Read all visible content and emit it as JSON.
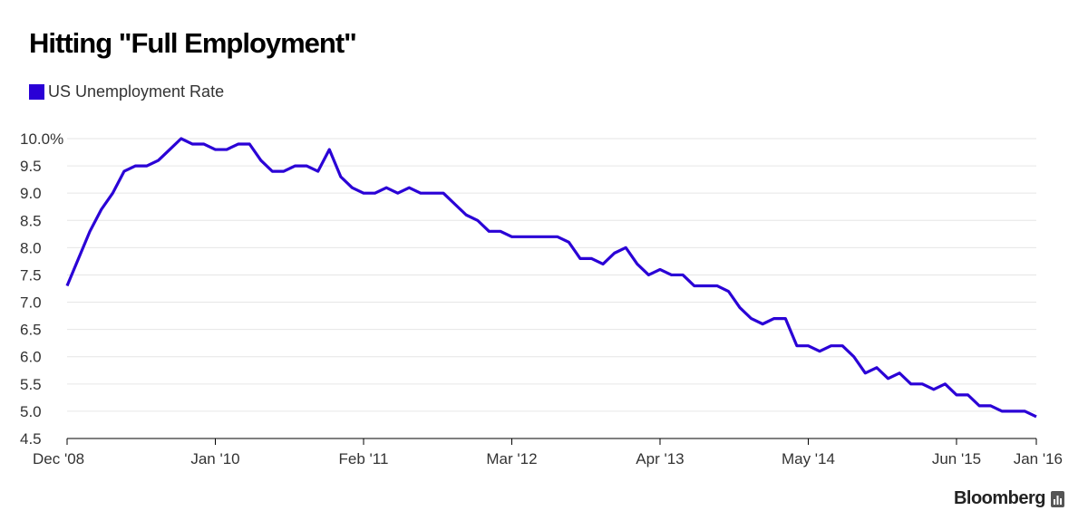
{
  "title": "Hitting \"Full Employment\"",
  "brand": "Bloomberg",
  "colors": {
    "series": "#2a00d6",
    "grid": "#e6e6e6",
    "axis": "#000000",
    "text": "#333333"
  },
  "chart_data": {
    "type": "line",
    "title": "Hitting \"Full Employment\"",
    "xlabel": "",
    "ylabel": "",
    "ylim": [
      4.5,
      10.0
    ],
    "y_ticks": [
      {
        "value": 10.0,
        "label": "10.0%"
      },
      {
        "value": 9.5,
        "label": "9.5"
      },
      {
        "value": 9.0,
        "label": "9.0"
      },
      {
        "value": 8.5,
        "label": "8.5"
      },
      {
        "value": 8.0,
        "label": "8.0"
      },
      {
        "value": 7.5,
        "label": "7.5"
      },
      {
        "value": 7.0,
        "label": "7.0"
      },
      {
        "value": 6.5,
        "label": "6.5"
      },
      {
        "value": 6.0,
        "label": "6.0"
      },
      {
        "value": 5.5,
        "label": "5.5"
      },
      {
        "value": 5.0,
        "label": "5.0"
      },
      {
        "value": 4.5,
        "label": "4.5"
      }
    ],
    "x_ticks": [
      {
        "date": "2008-12",
        "label": "Dec '08"
      },
      {
        "date": "2010-01",
        "label": "Jan '10"
      },
      {
        "date": "2011-02",
        "label": "Feb '11"
      },
      {
        "date": "2012-03",
        "label": "Mar '12"
      },
      {
        "date": "2013-04",
        "label": "Apr '13"
      },
      {
        "date": "2014-05",
        "label": "May '14"
      },
      {
        "date": "2015-06",
        "label": "Jun '15"
      },
      {
        "date": "2016-01",
        "label": "Jan '16"
      }
    ],
    "grid": true,
    "legend": "top-left",
    "series": [
      {
        "name": "US Unemployment Rate",
        "color": "#2a00d6",
        "start": "2008-12",
        "values": [
          7.3,
          7.8,
          8.3,
          8.7,
          9.0,
          9.4,
          9.5,
          9.5,
          9.6,
          9.8,
          10.0,
          9.9,
          9.9,
          9.8,
          9.8,
          9.9,
          9.9,
          9.6,
          9.4,
          9.4,
          9.5,
          9.5,
          9.4,
          9.8,
          9.3,
          9.1,
          9.0,
          9.0,
          9.1,
          9.0,
          9.1,
          9.0,
          9.0,
          9.0,
          8.8,
          8.6,
          8.5,
          8.3,
          8.3,
          8.2,
          8.2,
          8.2,
          8.2,
          8.2,
          8.1,
          7.8,
          7.8,
          7.7,
          7.9,
          8.0,
          7.7,
          7.5,
          7.6,
          7.5,
          7.5,
          7.3,
          7.3,
          7.3,
          7.2,
          6.9,
          6.7,
          6.6,
          6.7,
          6.7,
          6.2,
          6.2,
          6.1,
          6.2,
          6.2,
          6.0,
          5.7,
          5.8,
          5.6,
          5.7,
          5.5,
          5.5,
          5.4,
          5.5,
          5.3,
          5.3,
          5.1,
          5.1,
          5.0,
          5.0,
          5.0,
          4.9
        ]
      }
    ]
  }
}
